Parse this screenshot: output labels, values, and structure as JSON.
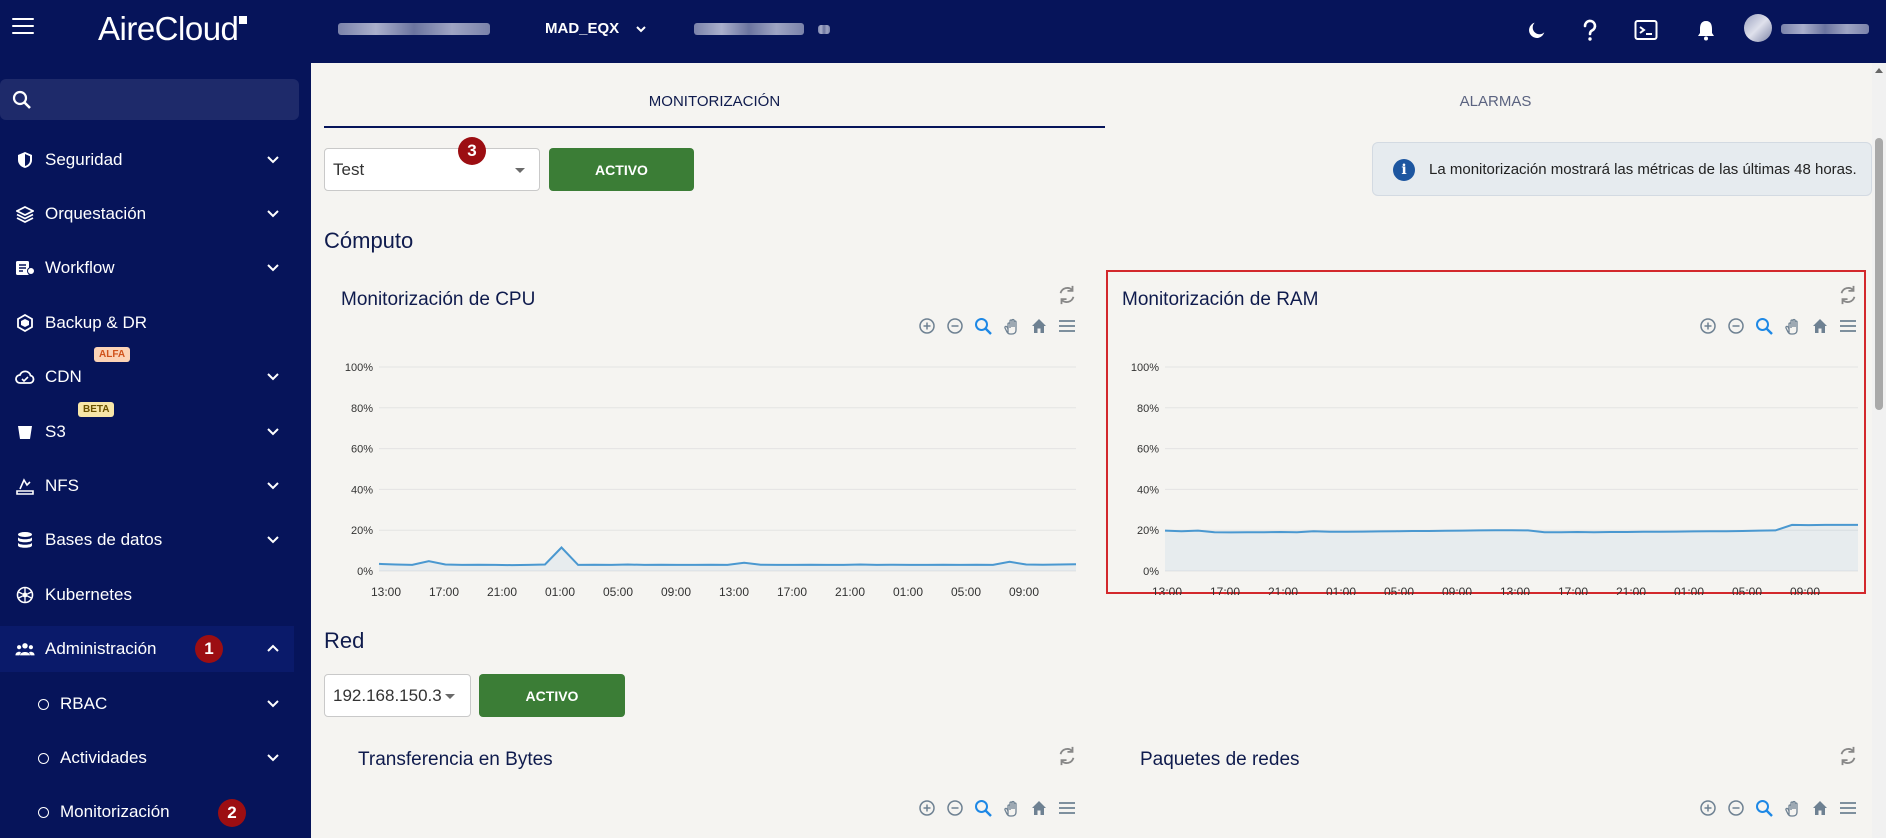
{
  "header": {
    "logo": "AireCloud",
    "org_select": "MAD_EQX",
    "icons": [
      "menu-icon",
      "moon-icon",
      "help-icon",
      "terminal-icon",
      "bell-icon"
    ]
  },
  "sidebar": {
    "items": [
      {
        "label": "Seguridad",
        "icon": "shield-icon",
        "chevron": "down"
      },
      {
        "label": "Orquestación",
        "icon": "layers-icon",
        "chevron": "down"
      },
      {
        "label": "Workflow",
        "icon": "workflow-icon",
        "chevron": "down"
      },
      {
        "label": "Backup & DR",
        "icon": "backup-icon",
        "chevron": ""
      },
      {
        "label": "CDN",
        "icon": "cloud-icon",
        "chevron": "down",
        "badge": "ALFA"
      },
      {
        "label": "S3",
        "icon": "bucket-icon",
        "chevron": "down",
        "badge": "BETA"
      },
      {
        "label": "NFS",
        "icon": "nfs-icon",
        "chevron": "down"
      },
      {
        "label": "Bases de datos",
        "icon": "database-icon",
        "chevron": "down"
      },
      {
        "label": "Kubernetes",
        "icon": "kubernetes-icon",
        "chevron": ""
      },
      {
        "label": "Administración",
        "icon": "users-icon",
        "chevron": "up",
        "marker": "1"
      }
    ],
    "subitems": [
      {
        "label": "RBAC",
        "chevron": "down"
      },
      {
        "label": "Actividades",
        "chevron": "down"
      },
      {
        "label": "Monitorización",
        "chevron": "",
        "marker": "2"
      }
    ]
  },
  "tabs": [
    {
      "label": "MONITORIZACIÓN",
      "active": true
    },
    {
      "label": "ALARMAS",
      "active": false
    }
  ],
  "compute": {
    "select_value": "Test",
    "marker": "3",
    "status_button": "ACTIVO",
    "info_text": "La monitorización mostrará las métricas de las últimas 48 horas.",
    "section_title": "Cómputo"
  },
  "network": {
    "section_title": "Red",
    "select_value": "192.168.150.3",
    "status_button": "ACTIVO",
    "chart1_title": "Transferencia en Bytes",
    "chart2_title": "Paquetes de redes"
  },
  "chart_data": [
    {
      "type": "line",
      "title": "Monitorización de CPU",
      "yticks": [
        "100%",
        "80%",
        "60%",
        "40%",
        "20%",
        "0%"
      ],
      "ylim": [
        0,
        100
      ],
      "xticks": [
        "13:00",
        "17:00",
        "21:00",
        "01:00",
        "05:00",
        "09:00",
        "13:00",
        "17:00",
        "21:00",
        "01:00",
        "05:00",
        "09:00"
      ],
      "series": [
        {
          "color": "#4a98d0",
          "values": [
            3.5,
            3.2,
            3.0,
            4.8,
            3.2,
            3.0,
            3.1,
            3.0,
            2.9,
            3.0,
            3.2,
            11.5,
            3.0,
            3.1,
            3.0,
            3.2,
            3.0,
            3.1,
            3.0,
            3.0,
            3.1,
            3.0,
            4.0,
            3.1,
            3.0,
            3.0,
            3.1,
            3.0,
            3.0,
            3.2,
            3.0,
            3.1,
            3.0,
            3.0,
            3.1,
            3.0,
            3.1,
            3.0,
            4.5,
            3.2,
            3.1,
            3.2,
            3.3
          ]
        }
      ],
      "grid": true
    },
    {
      "type": "line",
      "title": "Monitorización de RAM",
      "yticks": [
        "100%",
        "80%",
        "60%",
        "40%",
        "20%",
        "0%"
      ],
      "ylim": [
        0,
        100
      ],
      "xticks": [
        "13:00",
        "17:00",
        "21:00",
        "01:00",
        "05:00",
        "09:00",
        "13:00",
        "17:00",
        "21:00",
        "01:00",
        "05:00",
        "09:00"
      ],
      "series": [
        {
          "color": "#4a98d0",
          "values": [
            19.8,
            19.5,
            19.8,
            19.0,
            18.9,
            19.0,
            19.0,
            19.1,
            19.0,
            19.5,
            19.2,
            19.2,
            19.3,
            19.4,
            19.5,
            19.6,
            19.6,
            19.7,
            19.8,
            19.9,
            20.0,
            20.0,
            19.9,
            19.0,
            19.0,
            19.1,
            19.0,
            19.1,
            19.1,
            19.2,
            19.2,
            19.3,
            19.4,
            19.5,
            19.5,
            19.6,
            19.8,
            19.9,
            22.6,
            22.5,
            22.6,
            22.6,
            22.6
          ]
        }
      ],
      "grid": true
    }
  ]
}
